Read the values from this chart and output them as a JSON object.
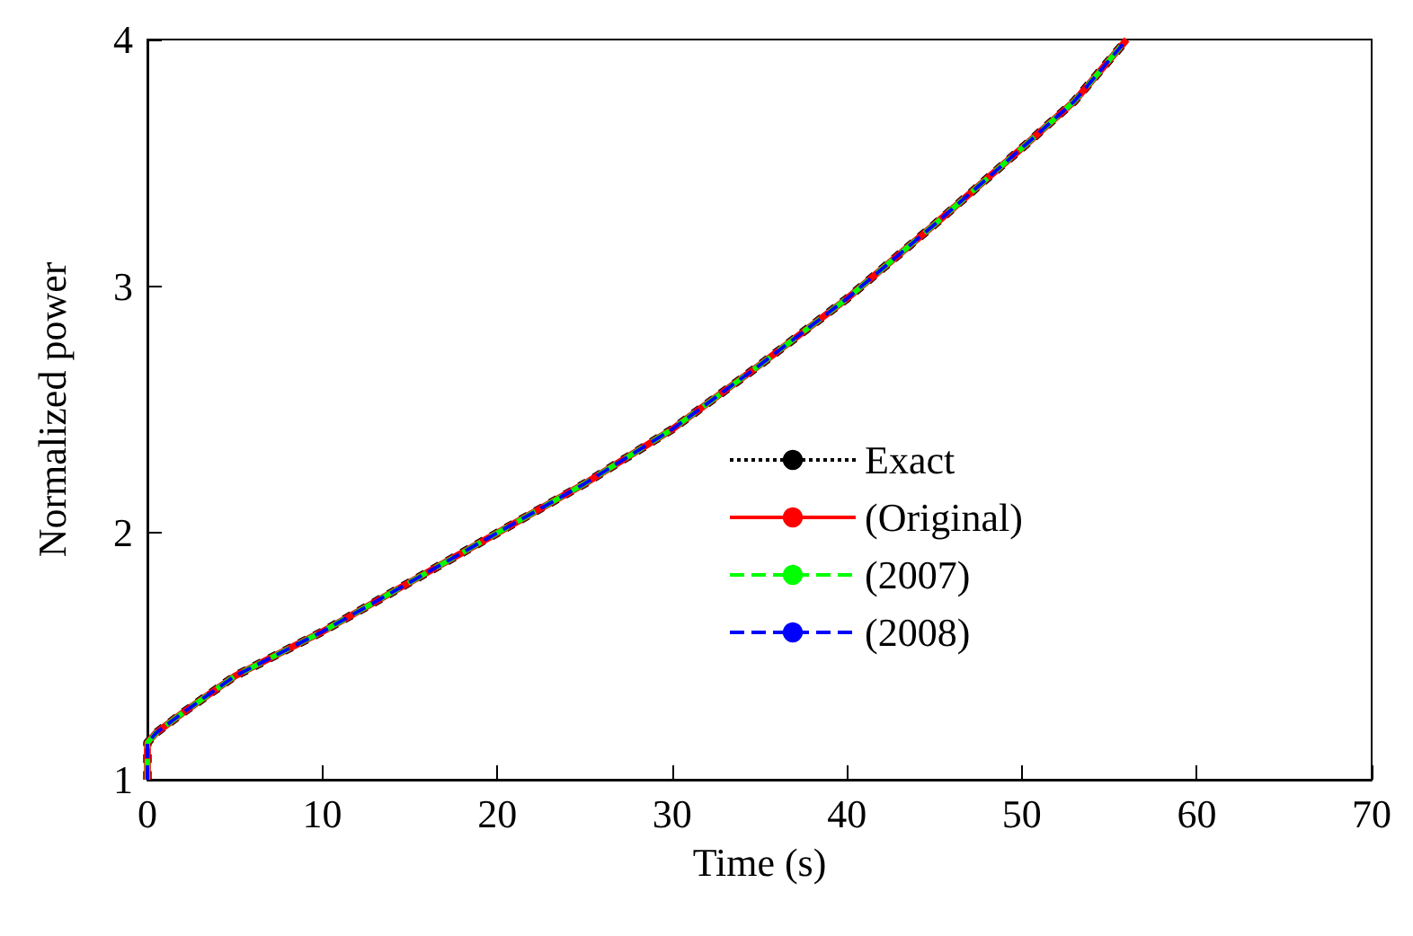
{
  "chart_data": {
    "type": "line",
    "xlabel": "Time (s)",
    "ylabel": "Normalized power",
    "x": [
      0,
      0,
      0.5,
      2,
      5,
      10,
      15,
      20,
      25,
      30,
      35,
      40,
      45,
      50,
      53,
      56
    ],
    "series": [
      {
        "name": "Exact",
        "color": "#000000",
        "line_style": "dotted",
        "values": [
          1,
          1.15,
          1.19,
          1.27,
          1.42,
          1.6,
          1.8,
          2.0,
          2.2,
          2.42,
          2.68,
          2.95,
          3.25,
          3.56,
          3.75,
          4
        ]
      },
      {
        "name": "(Original)",
        "color": "#ff0000",
        "line_style": "solid",
        "values": [
          1,
          1.15,
          1.19,
          1.27,
          1.42,
          1.6,
          1.8,
          2.0,
          2.2,
          2.42,
          2.68,
          2.95,
          3.25,
          3.56,
          3.75,
          4
        ]
      },
      {
        "name": "(2007)",
        "color": "#00ff00",
        "line_style": "dashed",
        "values": [
          1,
          1.15,
          1.19,
          1.27,
          1.42,
          1.6,
          1.8,
          2.0,
          2.2,
          2.42,
          2.68,
          2.95,
          3.25,
          3.56,
          3.75,
          4
        ]
      },
      {
        "name": "(2008)",
        "color": "#0000ff",
        "line_style": "dashed",
        "values": [
          1,
          1.15,
          1.19,
          1.27,
          1.42,
          1.6,
          1.8,
          2.0,
          2.2,
          2.42,
          2.68,
          2.95,
          3.25,
          3.56,
          3.75,
          4
        ]
      }
    ],
    "xlim": [
      0,
      70
    ],
    "xticks": [
      0,
      10,
      20,
      30,
      40,
      50,
      60,
      70
    ],
    "ylim": [
      1,
      4
    ],
    "yticks": [
      1,
      2,
      3,
      4
    ],
    "grid": false,
    "legend": "right",
    "marker": "none"
  }
}
